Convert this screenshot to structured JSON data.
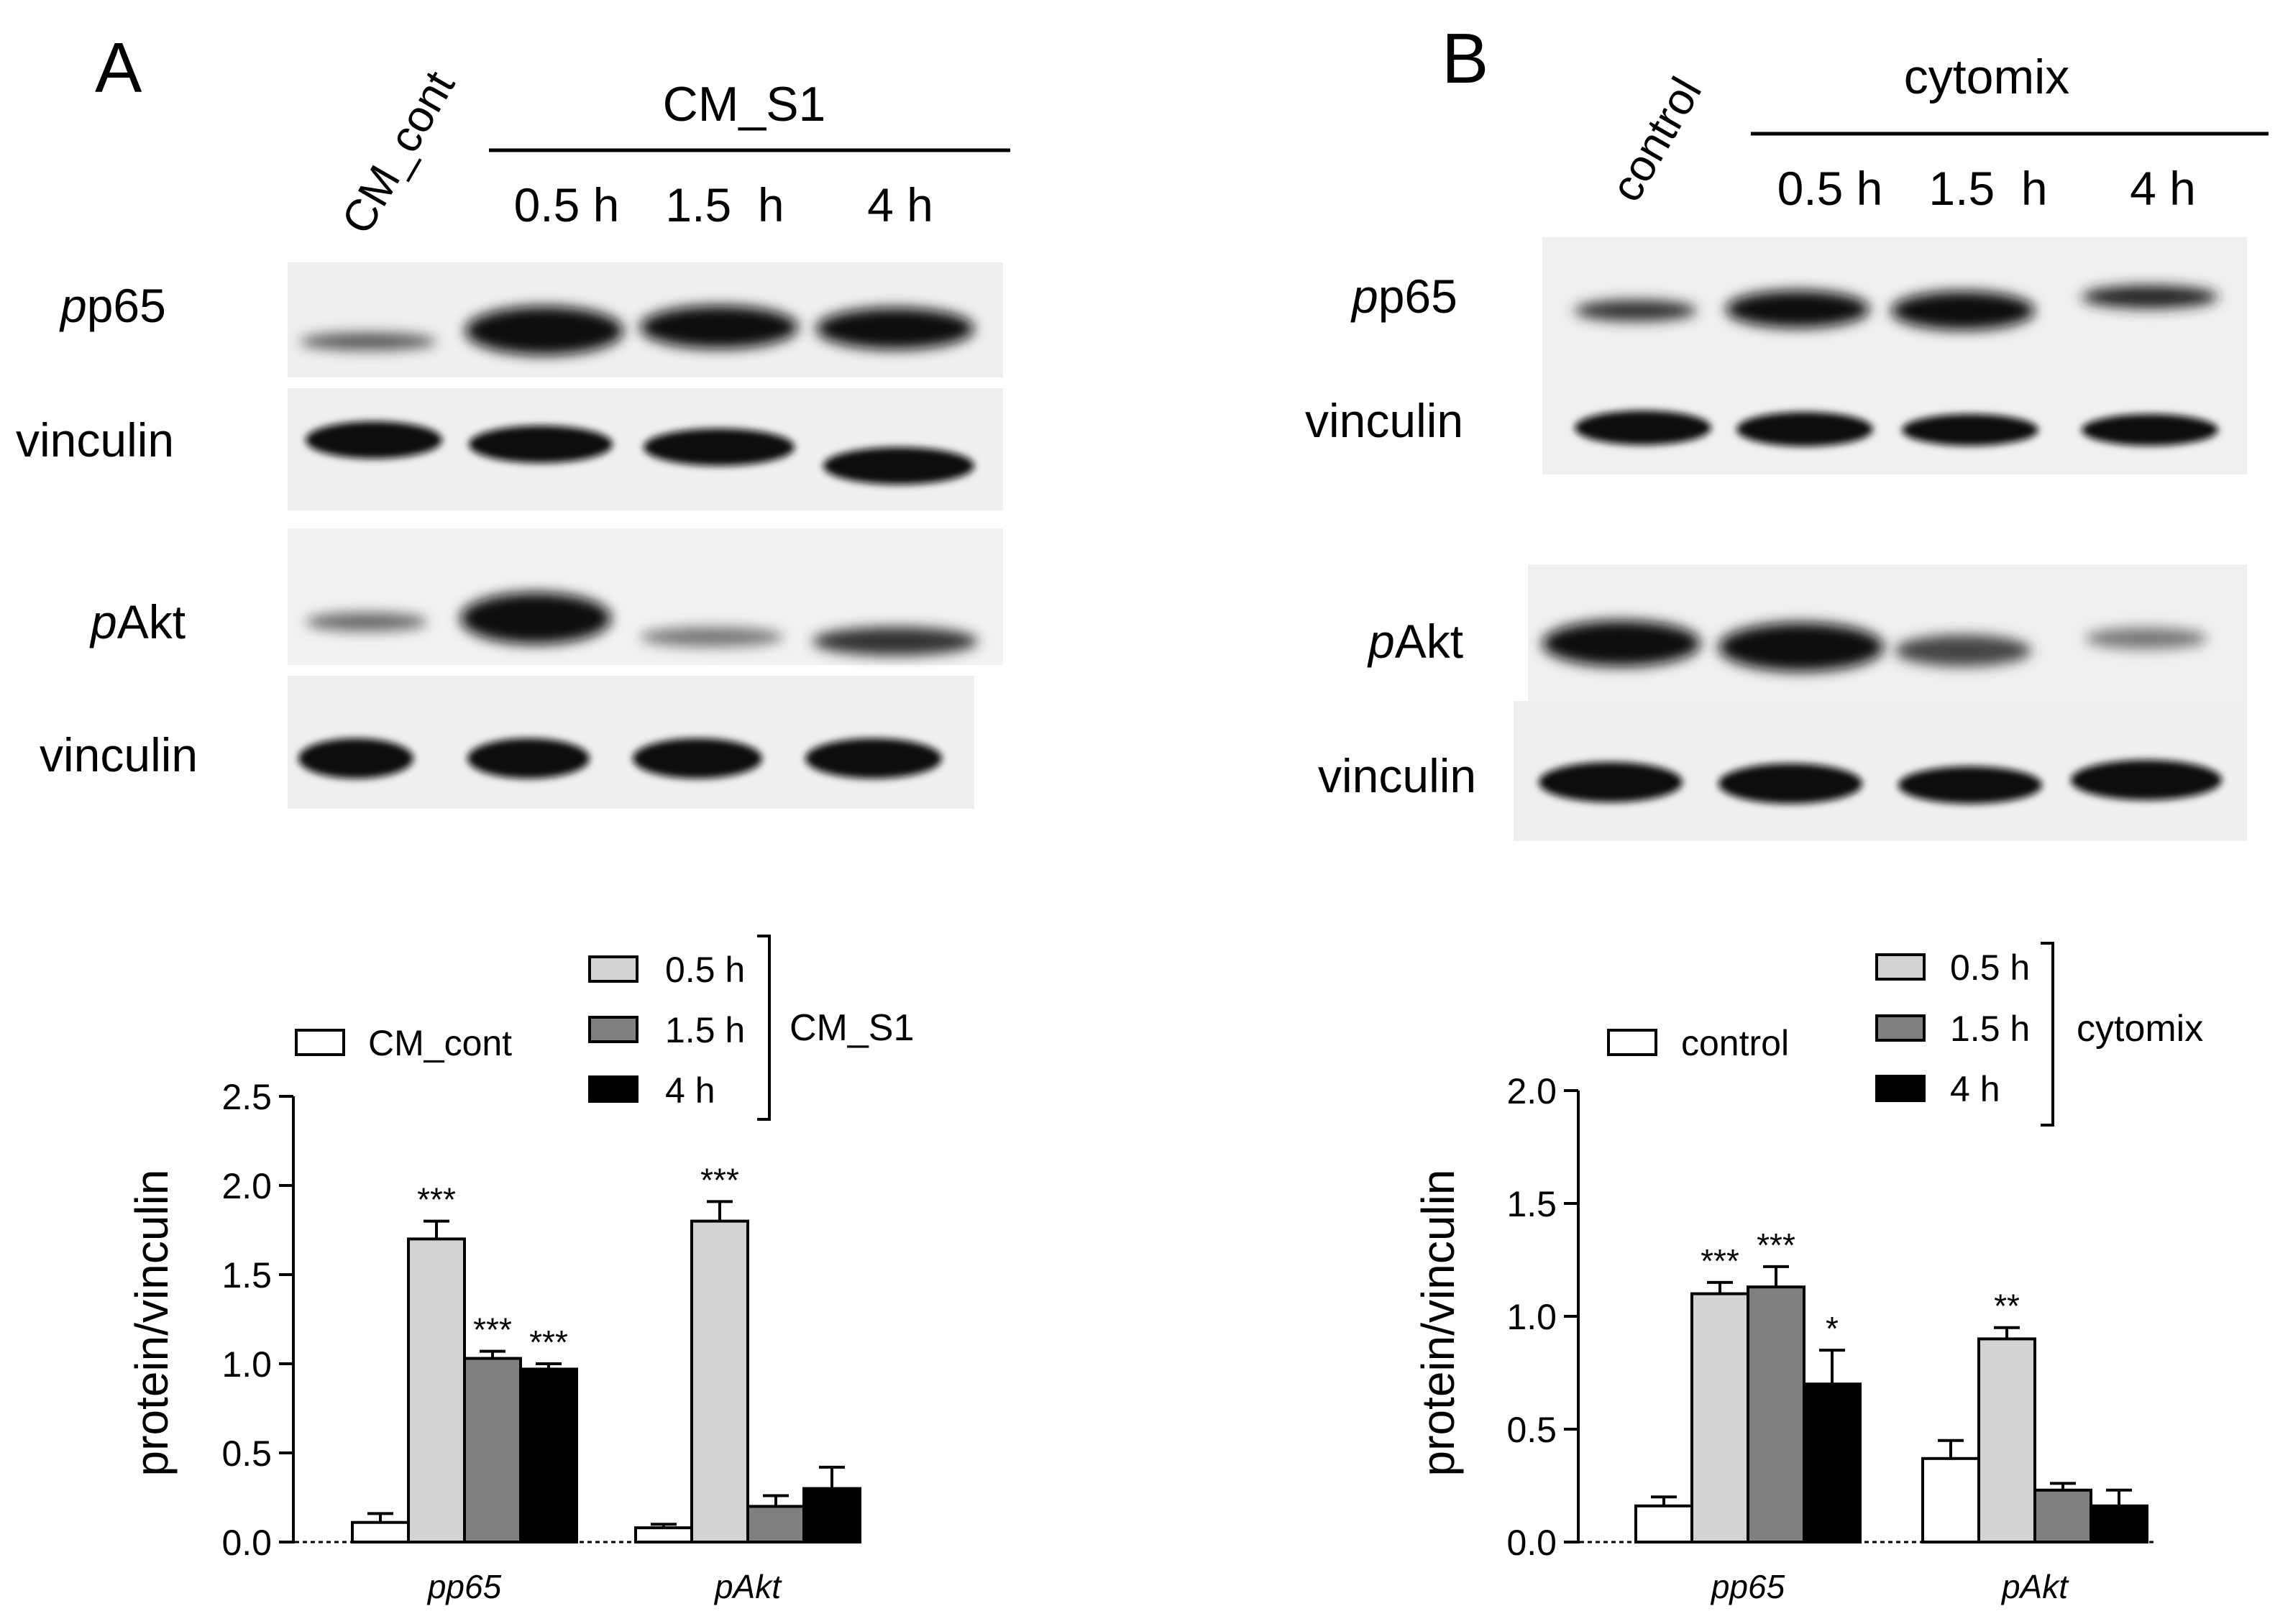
{
  "panels": [
    {
      "letter": "A",
      "lanes": [
        "CM_cont",
        "0.5 h",
        "1.5  h",
        "4 h"
      ],
      "group_label": "CM_S1",
      "blot_labels": [
        {
          "italic": "p",
          "rest": "p65"
        },
        {
          "italic": "",
          "rest": "vinculin"
        },
        {
          "italic": "p",
          "rest": "Akt"
        },
        {
          "italic": "",
          "rest": "vinculin"
        }
      ],
      "legend": {
        "control": "CM_cont",
        "times": [
          "0.5 h",
          "1.5 h",
          "4 h"
        ],
        "bracket_label": "CM_S1"
      },
      "chart_data": {
        "type": "bar",
        "categories": [
          "pp65",
          "pAkt"
        ],
        "category_italic": [
          "p",
          "pAkt"
        ],
        "category_rest": [
          "p65",
          ""
        ],
        "ylabel": "protein/vinculin",
        "ylim": [
          0,
          2.5
        ],
        "yticks": [
          "0.0",
          "0.5",
          "1.0",
          "1.5",
          "2.0",
          "2.5"
        ],
        "series": [
          {
            "name": "CM_cont",
            "color": "#ffffff",
            "values": [
              0.11,
              0.08
            ],
            "errors": [
              0.05,
              0.02
            ],
            "stars": [
              "",
              ""
            ]
          },
          {
            "name": "0.5 h",
            "color": "#d3d3d3",
            "values": [
              1.7,
              1.8
            ],
            "errors": [
              0.1,
              0.11
            ],
            "stars": [
              "***",
              "***"
            ]
          },
          {
            "name": "1.5 h",
            "color": "#808080",
            "values": [
              1.03,
              0.2
            ],
            "errors": [
              0.04,
              0.06
            ],
            "stars": [
              "***",
              ""
            ]
          },
          {
            "name": "4 h",
            "color": "#000000",
            "values": [
              0.97,
              0.3
            ],
            "errors": [
              0.03,
              0.12
            ],
            "stars": [
              "***",
              ""
            ]
          }
        ]
      }
    },
    {
      "letter": "B",
      "lanes": [
        "control",
        "0.5 h",
        "1.5  h",
        "4 h"
      ],
      "group_label": "cytomix",
      "blot_labels": [
        {
          "italic": "p",
          "rest": "p65"
        },
        {
          "italic": "",
          "rest": "vinculin"
        },
        {
          "italic": "p",
          "rest": "Akt"
        },
        {
          "italic": "",
          "rest": "vinculin"
        }
      ],
      "legend": {
        "control": "control",
        "times": [
          "0.5 h",
          "1.5 h",
          "4 h"
        ],
        "bracket_label": "cytomix"
      },
      "chart_data": {
        "type": "bar",
        "categories": [
          "pp65",
          "pAkt"
        ],
        "category_italic": [
          "p",
          "pAkt"
        ],
        "category_rest": [
          "p65",
          ""
        ],
        "ylabel": "protein/vinculin",
        "ylim": [
          0,
          2.0
        ],
        "yticks": [
          "0.0",
          "0.5",
          "1.0",
          "1.5",
          "2.0"
        ],
        "series": [
          {
            "name": "control",
            "color": "#ffffff",
            "values": [
              0.16,
              0.37
            ],
            "errors": [
              0.04,
              0.08
            ],
            "stars": [
              "",
              ""
            ]
          },
          {
            "name": "0.5 h",
            "color": "#d3d3d3",
            "values": [
              1.1,
              0.9
            ],
            "errors": [
              0.05,
              0.05
            ],
            "stars": [
              "***",
              "**"
            ]
          },
          {
            "name": "1.5 h",
            "color": "#808080",
            "values": [
              1.13,
              0.23
            ],
            "errors": [
              0.09,
              0.03
            ],
            "stars": [
              "***",
              ""
            ]
          },
          {
            "name": "4 h",
            "color": "#000000",
            "values": [
              0.7,
              0.16
            ],
            "errors": [
              0.15,
              0.07
            ],
            "stars": [
              "*",
              ""
            ]
          }
        ]
      }
    }
  ]
}
